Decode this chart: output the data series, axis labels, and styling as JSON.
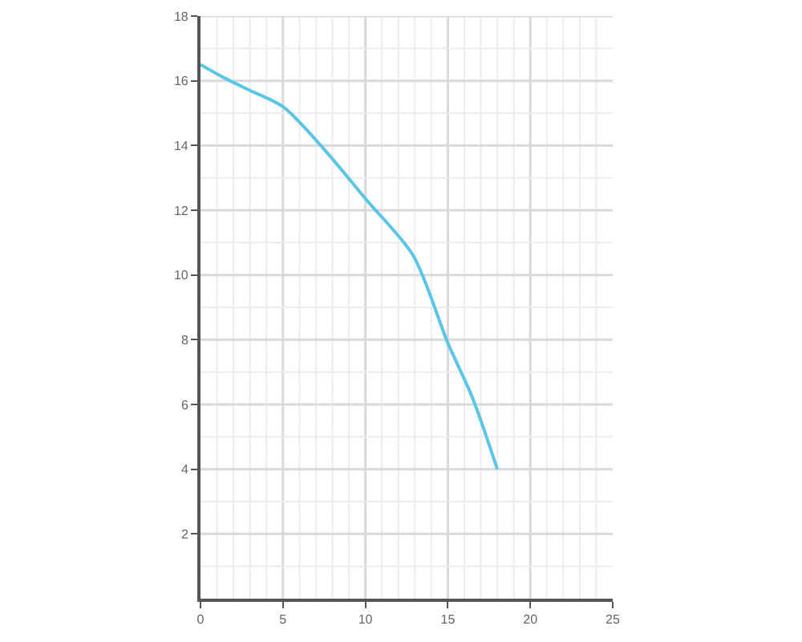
{
  "chart_data": {
    "type": "line",
    "x": [
      0,
      1.4,
      3,
      5,
      7.3,
      10.1,
      12.9,
      15,
      16.5,
      18
    ],
    "series": [
      {
        "color": "#5bc5e8",
        "values": [
          16.5,
          16.1,
          15.7,
          15.2,
          14,
          12.3,
          10.6,
          7.9,
          6.2,
          4
        ]
      }
    ],
    "xlim": [
      0,
      25
    ],
    "xticks": [
      0,
      5,
      10,
      15,
      20,
      25
    ],
    "ylim": [
      0,
      18
    ],
    "yticks": [
      2,
      4,
      6,
      8,
      10,
      12,
      14,
      16,
      18
    ],
    "grid": true,
    "marker": "none",
    "line_style": "solid"
  }
}
